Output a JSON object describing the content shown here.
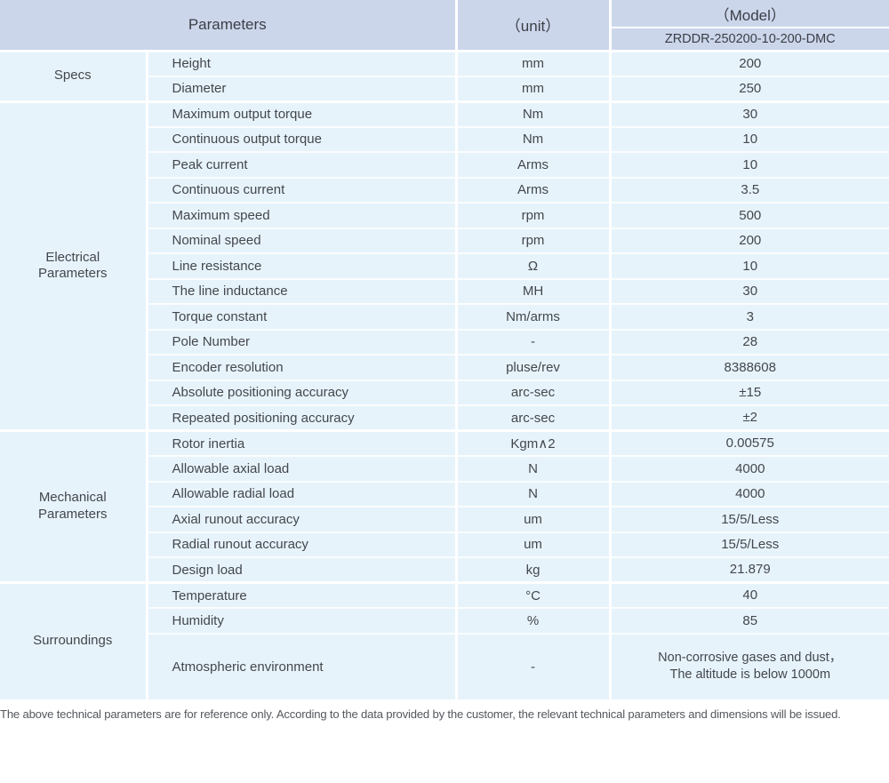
{
  "table": {
    "header": {
      "parameters_label": "Parameters",
      "unit_label": "（unit）",
      "model_label": "（Model）",
      "model_value": "ZRDDR-250200-10-200-DMC"
    },
    "sections": [
      {
        "category": "Specs",
        "rows": [
          {
            "param": "Height",
            "unit": "mm",
            "value": "200"
          },
          {
            "param": "Diameter",
            "unit": "mm",
            "value": "250"
          }
        ]
      },
      {
        "category": "Electrical Parameters",
        "rows": [
          {
            "param": "Maximum output torque",
            "unit": "Nm",
            "value": "30"
          },
          {
            "param": "Continuous output torque",
            "unit": "Nm",
            "value": "10"
          },
          {
            "param": "Peak current",
            "unit": "Arms",
            "value": "10"
          },
          {
            "param": "Continuous current",
            "unit": "Arms",
            "value": "3.5"
          },
          {
            "param": "Maximum speed",
            "unit": "rpm",
            "value": "500"
          },
          {
            "param": "Nominal speed",
            "unit": "rpm",
            "value": "200"
          },
          {
            "param": "Line resistance",
            "unit": "Ω",
            "value": "10"
          },
          {
            "param": "The line inductance",
            "unit": "MH",
            "value": "30"
          },
          {
            "param": "Torque constant",
            "unit": "Nm/arms",
            "value": "3"
          },
          {
            "param": "Pole Number",
            "unit": "-",
            "value": "28"
          },
          {
            "param": "Encoder resolution",
            "unit": "pluse/rev",
            "value": "8388608"
          },
          {
            "param": "Absolute positioning accuracy",
            "unit": "arc-sec",
            "value": "±15"
          },
          {
            "param": "Repeated positioning accuracy",
            "unit": "arc-sec",
            "value": "±2"
          }
        ]
      },
      {
        "category": "Mechanical Parameters",
        "rows": [
          {
            "param": "Rotor inertia",
            "unit": "Kgm∧2",
            "value": "0.00575"
          },
          {
            "param": "Allowable axial load",
            "unit": "N",
            "value": "4000"
          },
          {
            "param": "Allowable radial load",
            "unit": "N",
            "value": "4000"
          },
          {
            "param": "Axial runout accuracy",
            "unit": "um",
            "value": "15/5/Less"
          },
          {
            "param": "Radial runout accuracy",
            "unit": "um",
            "value": "15/5/Less"
          },
          {
            "param": "Design load",
            "unit": "kg",
            "value": "21.879"
          }
        ]
      },
      {
        "category": "Surroundings",
        "rows": [
          {
            "param": "Temperature",
            "unit": "°C",
            "value": "40"
          },
          {
            "param": "Humidity",
            "unit": "%",
            "value": "85"
          },
          {
            "param": "Atmospheric environment",
            "unit": "-",
            "value": "Non-corrosive gases and dust，\nThe altitude is below 1000m",
            "tall": true
          }
        ]
      }
    ]
  },
  "footer": {
    "note": "The above technical parameters are for reference only. According to the data provided by the customer, the relevant technical parameters and dimensions will be issued."
  },
  "colors": {
    "header_bg": "#ccd6eb",
    "body_bg": "#e7f3fb",
    "separator": "#ffffff",
    "text": "#43474c",
    "footer_text": "#54585d"
  }
}
